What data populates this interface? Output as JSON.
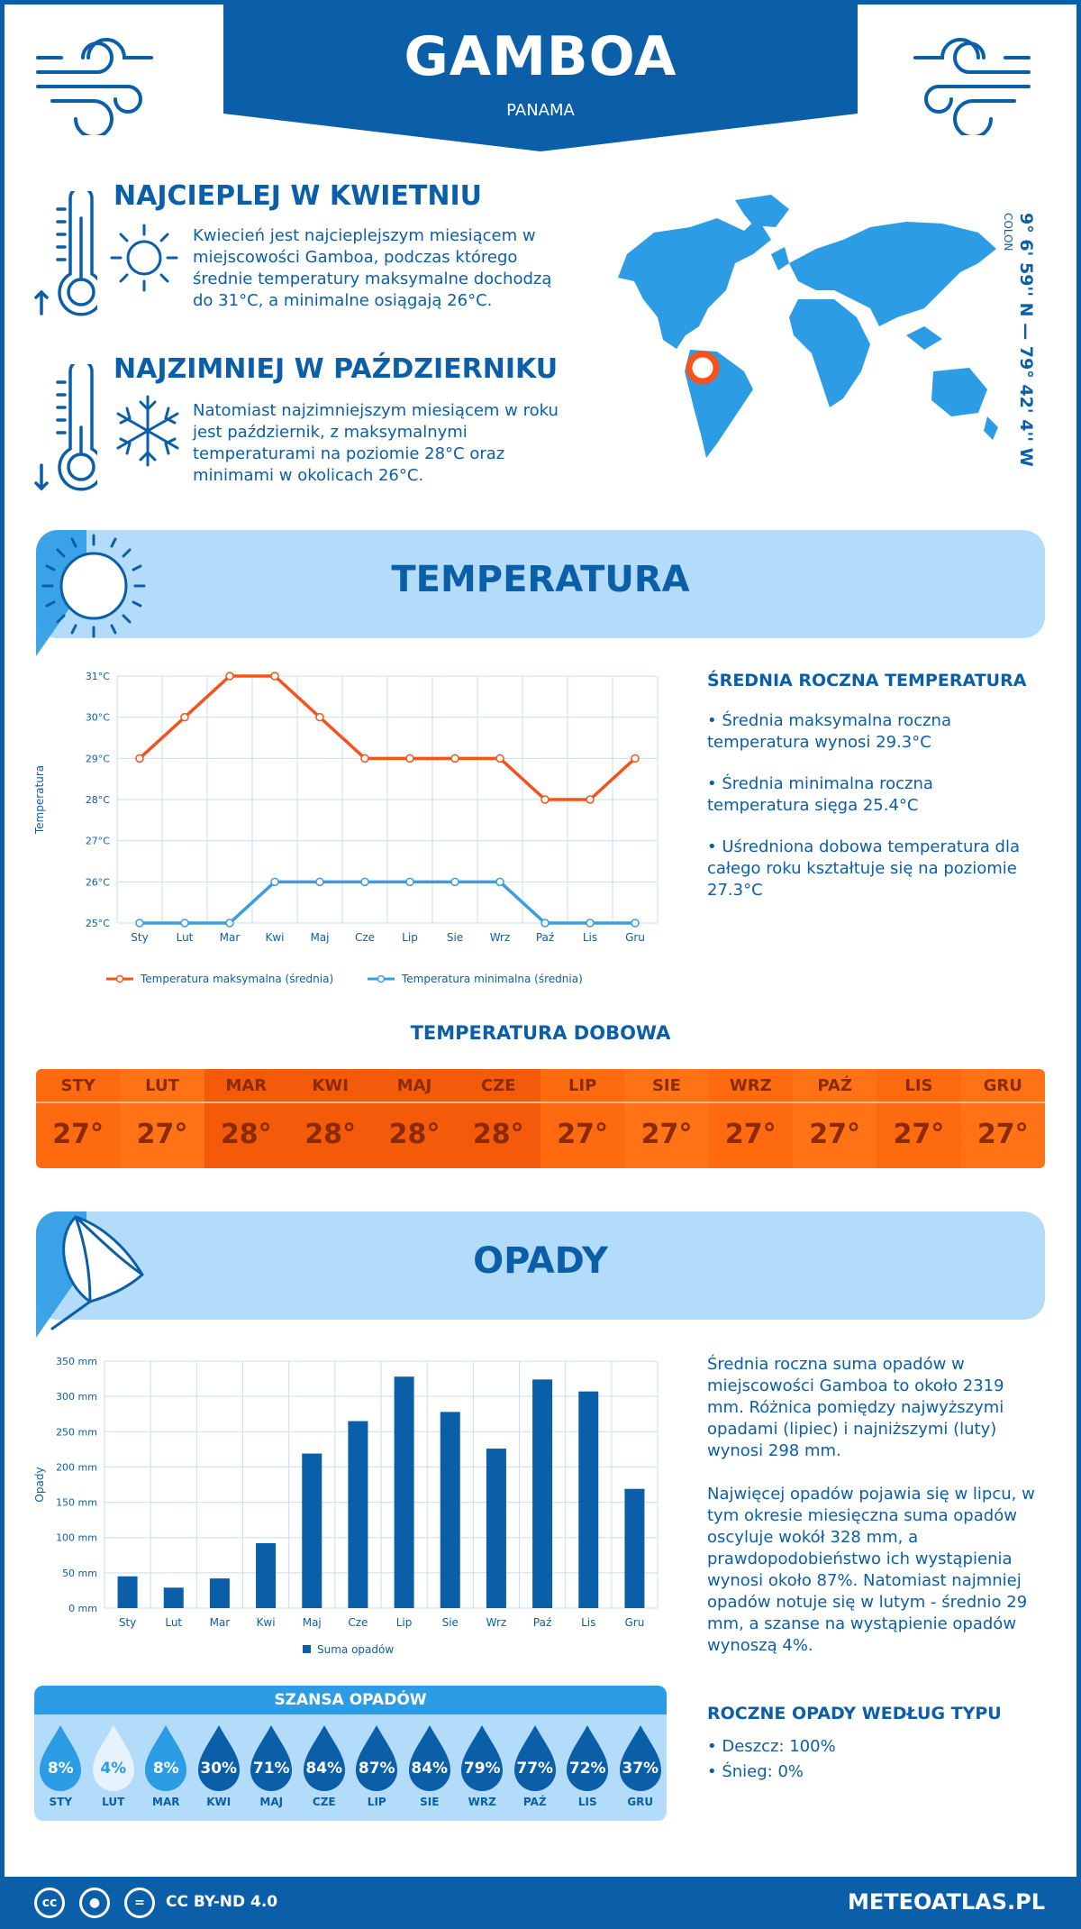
{
  "header": {
    "city": "GAMBOA",
    "country": "PANAMA"
  },
  "coords": {
    "region": "COLON",
    "text": "9° 6' 59'' N — 79° 42' 4'' W"
  },
  "warmest": {
    "title": "NAJCIEPLEJ W KWIETNIU",
    "text": "Kwiecień jest najcieplejszym miesiącem w miejscowości Gamboa, podczas którego średnie temperatury maksymalne dochodzą do 31°C, a minimalne osiągają 26°C."
  },
  "coldest": {
    "title": "NAJZIMNIEJ W PAŹDZIERNIKU",
    "text": "Natomiast najzimniejszym miesiącem w roku jest październik, z maksymalnymi temperaturami na poziomie 28°C oraz minimami w okolicach 26°C."
  },
  "temperature": {
    "band_title": "TEMPERATURA",
    "summary_title": "ŚREDNIA ROCZNA TEMPERATURA",
    "bullets": [
      "• Średnia maksymalna roczna temperatura wynosi 29.3°C",
      "• Średnia minimalna roczna temperatura sięga 25.4°C",
      "• Uśredniona dobowa temperatura dla całego roku kształtuje się na poziomie 27.3°C"
    ],
    "daily_title": "TEMPERATURA DOBOWA",
    "daily": [
      {
        "m": "STY",
        "v": "27°"
      },
      {
        "m": "LUT",
        "v": "27°"
      },
      {
        "m": "MAR",
        "v": "28°"
      },
      {
        "m": "KWI",
        "v": "28°"
      },
      {
        "m": "MAJ",
        "v": "28°"
      },
      {
        "m": "CZE",
        "v": "28°"
      },
      {
        "m": "LIP",
        "v": "27°"
      },
      {
        "m": "SIE",
        "v": "27°"
      },
      {
        "m": "WRZ",
        "v": "27°"
      },
      {
        "m": "PAŹ",
        "v": "27°"
      },
      {
        "m": "LIS",
        "v": "27°"
      },
      {
        "m": "GRU",
        "v": "27°"
      }
    ]
  },
  "precip": {
    "band_title": "OPADY",
    "text1": "Średnia roczna suma opadów w miejscowości Gamboa to około 2319 mm. Różnica pomiędzy najwyższymi opadami (lipiec) i najniższymi (luty) wynosi 298 mm.",
    "text2": "Najwięcej opadów pojawia się w lipcu, w tym okresie miesięczna suma opadów oscyluje wokół 328 mm, a prawdopodobieństwo ich wystąpienia wynosi około 87%. Natomiast najmniej opadów notuje się w lutym - średnio 29 mm, a szanse na wystąpienie opadów wynoszą 4%.",
    "type_title": "ROCZNE OPADY WEDŁUG TYPU",
    "types": [
      "• Deszcz: 100%",
      "• Śnieg: 0%"
    ],
    "chance_title": "SZANSA OPADÓW",
    "chance": [
      {
        "m": "STY",
        "v": "8%"
      },
      {
        "m": "LUT",
        "v": "4%"
      },
      {
        "m": "MAR",
        "v": "8%"
      },
      {
        "m": "KWI",
        "v": "30%"
      },
      {
        "m": "MAJ",
        "v": "71%"
      },
      {
        "m": "CZE",
        "v": "84%"
      },
      {
        "m": "LIP",
        "v": "87%"
      },
      {
        "m": "SIE",
        "v": "84%"
      },
      {
        "m": "WRZ",
        "v": "79%"
      },
      {
        "m": "PAŹ",
        "v": "77%"
      },
      {
        "m": "LIS",
        "v": "72%"
      },
      {
        "m": "GRU",
        "v": "37%"
      }
    ]
  },
  "footer": {
    "license": "CC BY-ND 4.0",
    "site": "METEOATLAS.PL"
  },
  "chart_data": [
    {
      "type": "line",
      "categories": [
        "Sty",
        "Lut",
        "Mar",
        "Kwi",
        "Maj",
        "Cze",
        "Lip",
        "Sie",
        "Wrz",
        "Paź",
        "Lis",
        "Gru"
      ],
      "ylabel": "Temperatura",
      "ylim": [
        25,
        31
      ],
      "yticks": [
        "25°C",
        "26°C",
        "27°C",
        "28°C",
        "29°C",
        "30°C",
        "31°C"
      ],
      "series": [
        {
          "name": "Temperatura maksymalna (średnia)",
          "color": "#f5521c",
          "values": [
            29,
            30,
            31,
            31,
            30,
            29,
            29,
            29,
            29,
            28,
            28,
            29
          ]
        },
        {
          "name": "Temperatura minimalna (średnia)",
          "color": "#3a9de0",
          "values": [
            25,
            25,
            25,
            26,
            26,
            26,
            26,
            26,
            26,
            25,
            25,
            25
          ]
        }
      ],
      "grid": true,
      "legend": "bottom"
    },
    {
      "type": "bar",
      "categories": [
        "Sty",
        "Lut",
        "Mar",
        "Kwi",
        "Maj",
        "Cze",
        "Lip",
        "Sie",
        "Wrz",
        "Paź",
        "Lis",
        "Gru"
      ],
      "ylabel": "Opady",
      "ylim": [
        0,
        350
      ],
      "yticks": [
        "0 mm",
        "50 mm",
        "100 mm",
        "150 mm",
        "200 mm",
        "250 mm",
        "300 mm",
        "350 mm"
      ],
      "series": [
        {
          "name": "Suma opadów",
          "color": "#0b5ea8",
          "values": [
            45,
            29,
            42,
            92,
            219,
            265,
            328,
            278,
            226,
            324,
            307,
            169
          ]
        }
      ],
      "grid": true,
      "legend": "bottom"
    }
  ]
}
